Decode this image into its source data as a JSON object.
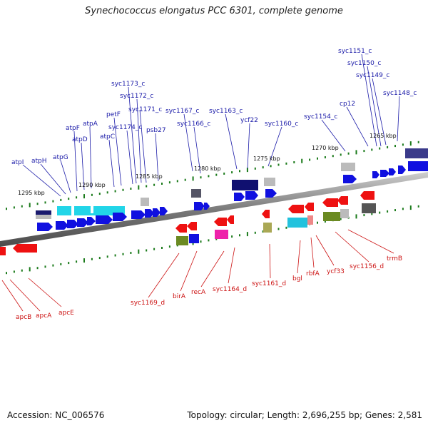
{
  "title": "Synechococcus elongatus PCC 6301, complete genome",
  "footer": {
    "accession": "Accession: NC_006576",
    "summary": "Topology: circular; Length: 2,696,255 bp; Genes: 2,581"
  },
  "colors": {
    "forward_gene": "#1010e0",
    "reverse_gene": "#ee1111",
    "forward_label": "#1a1aa8",
    "reverse_label": "#cc1111",
    "backbone": "#888888",
    "tick": "#1a7a1a"
  },
  "kbp_labels": [
    "1295 kbp",
    "1290 kbp",
    "1285 kbp",
    "1280 kbp",
    "1275 kbp",
    "1270 kbp",
    "1265 kbp"
  ],
  "forward_labels": [
    "atpI",
    "atpH",
    "atpG",
    "atpF",
    "atpD",
    "atpA",
    "atpC",
    "petF",
    "syc1174_c",
    "syc1171_c",
    "psb27",
    "syc1172_c",
    "syc1173_c",
    "syc1167_c",
    "syc1166_c",
    "syc1163_c",
    "ycf22",
    "syc1160_c",
    "syc1154_c",
    "cp12",
    "syc1151_c",
    "syc1150_c",
    "syc1149_c",
    "syc1148_c"
  ],
  "reverse_labels": [
    "apcB",
    "apcA",
    "apcE",
    "syc1169_d",
    "birA",
    "recA",
    "syc1164_d",
    "syc1161_d",
    "bgl",
    "rbfA",
    "ycf33",
    "syc1156_d",
    "trmB"
  ]
}
